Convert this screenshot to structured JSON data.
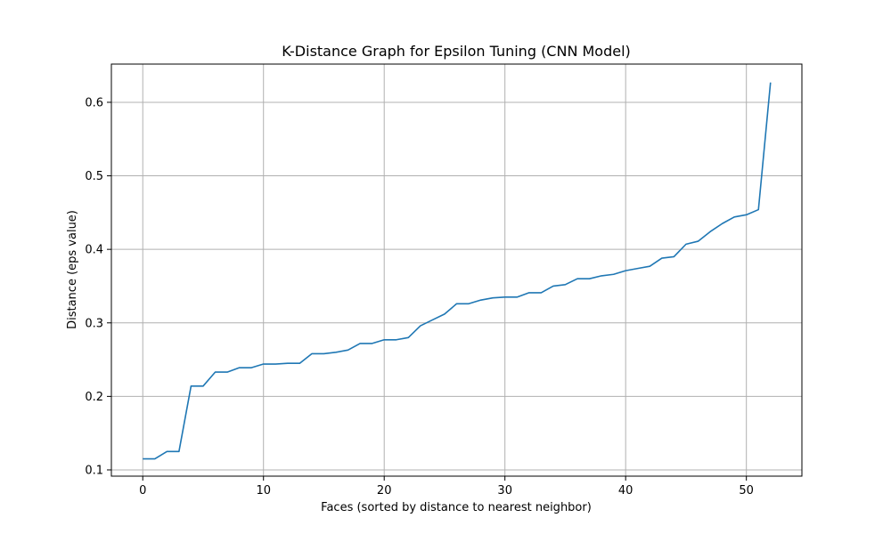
{
  "chart_data": {
    "type": "line",
    "title": "K-Distance Graph for Epsilon Tuning (CNN Model)",
    "xlabel": "Faces (sorted by distance to nearest neighbor)",
    "ylabel": "Distance (eps value)",
    "xlim": [
      -2.6,
      54.6
    ],
    "ylim": [
      0.0915,
      0.652
    ],
    "xticks": [
      0,
      10,
      20,
      30,
      40,
      50
    ],
    "yticks": [
      0.1,
      0.2,
      0.3,
      0.4,
      0.5,
      0.6
    ],
    "xtick_labels": [
      "0",
      "10",
      "20",
      "30",
      "40",
      "50"
    ],
    "ytick_labels": [
      "0.1",
      "0.2",
      "0.3",
      "0.4",
      "0.5",
      "0.6"
    ],
    "grid": true,
    "color": "#1f77b4",
    "series": [
      {
        "x": [
          0,
          1,
          2,
          3,
          4,
          5,
          6,
          7,
          8,
          9,
          10,
          11,
          12,
          13,
          14,
          15,
          16,
          17,
          18,
          19,
          20,
          21,
          22,
          23,
          24,
          25,
          26,
          27,
          28,
          29,
          30,
          31,
          32,
          33,
          34,
          35,
          36,
          37,
          38,
          39,
          40,
          41,
          42,
          43,
          44,
          45,
          46,
          47,
          48,
          49,
          50,
          51,
          52
        ],
        "values": [
          0.115,
          0.115,
          0.125,
          0.125,
          0.214,
          0.214,
          0.233,
          0.233,
          0.239,
          0.239,
          0.244,
          0.244,
          0.245,
          0.245,
          0.258,
          0.258,
          0.26,
          0.263,
          0.272,
          0.272,
          0.277,
          0.277,
          0.28,
          0.296,
          0.304,
          0.312,
          0.326,
          0.326,
          0.331,
          0.334,
          0.335,
          0.335,
          0.341,
          0.341,
          0.35,
          0.352,
          0.36,
          0.36,
          0.364,
          0.366,
          0.371,
          0.374,
          0.377,
          0.388,
          0.39,
          0.407,
          0.411,
          0.424,
          0.435,
          0.444,
          0.447,
          0.454,
          0.627
        ]
      }
    ]
  }
}
